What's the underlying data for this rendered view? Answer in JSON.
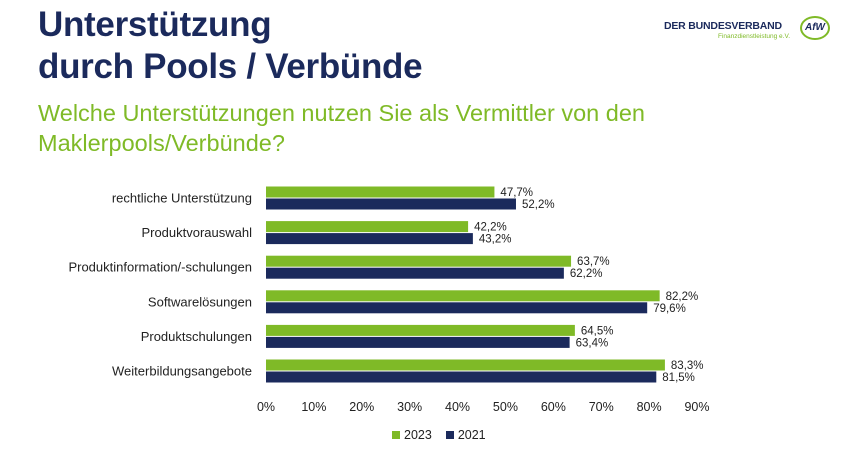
{
  "header": {
    "title_line1": "Unterstützung",
    "title_line2": "durch Pools / Verbünde",
    "subtitle": "Welche Unterstützungen nutzen Sie als Vermittler von den Maklerpools/Verbünde?"
  },
  "logo": {
    "name": "DER BUNDESVERBAND",
    "tagline": "Finanzdienstleistung e.V.",
    "mark": "AfW"
  },
  "colors": {
    "title": "#1b2a5c",
    "subtitle": "#7fba27",
    "series_2023": "#7fba27",
    "series_2021": "#1b2a5c"
  },
  "chart_data": {
    "type": "bar",
    "orientation": "horizontal",
    "title": "Welche Unterstützungen nutzen Sie als Vermittler von den Maklerpools/Verbünde?",
    "categories": [
      "rechtliche Unterstützung",
      "Produktvorauswahl",
      "Produktinformation/-schulungen",
      "Softwarelösungen",
      "Produktschulungen",
      "Weiterbildungsangebote"
    ],
    "series": [
      {
        "name": "2023",
        "color": "#7fba27",
        "values": [
          47.7,
          42.2,
          63.7,
          82.2,
          64.5,
          83.3
        ],
        "labels": [
          "47,7%",
          "42,2%",
          "63,7%",
          "82,2%",
          "64,5%",
          "83,3%"
        ]
      },
      {
        "name": "2021",
        "color": "#1b2a5c",
        "values": [
          52.2,
          43.2,
          62.2,
          79.6,
          63.4,
          81.5
        ],
        "labels": [
          "52,2%",
          "43,2%",
          "62,2%",
          "79,6%",
          "63,4%",
          "81,5%"
        ]
      }
    ],
    "xlim": [
      0,
      90
    ],
    "xticks": [
      0,
      10,
      20,
      30,
      40,
      50,
      60,
      70,
      80,
      90
    ],
    "xtick_labels": [
      "0%",
      "10%",
      "20%",
      "30%",
      "40%",
      "50%",
      "60%",
      "70%",
      "80%",
      "90%"
    ],
    "grid": false,
    "legend": "bottom-center"
  }
}
